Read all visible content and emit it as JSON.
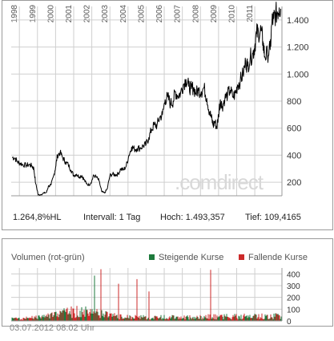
{
  "chart_data": [
    {
      "type": "line",
      "title": "",
      "xlabel": "",
      "ylabel": "",
      "x_tick_labels": [
        "1998",
        "1999",
        "2000",
        "2001",
        "2002",
        "2003",
        "2004",
        "2005",
        "2006",
        "2007",
        "2008",
        "2009",
        "2010",
        "2011"
      ],
      "y_tick_labels": [
        "200",
        "400",
        "600",
        "800",
        "1.000",
        "1.200",
        "1.400"
      ],
      "y_ticks": [
        200,
        400,
        600,
        800,
        1000,
        1200,
        1400
      ],
      "ylim": [
        100,
        1500
      ],
      "xlim": [
        1997.55,
        2012.5
      ],
      "grid": true,
      "watermark": ".comdirect",
      "series": [
        {
          "x": [
            1997.6,
            1997.75,
            1997.9,
            1998.05,
            1998.2,
            1998.4,
            1998.55,
            1998.7,
            1998.8,
            1998.9,
            1999.05,
            1999.2,
            1999.35,
            1999.5,
            1999.6,
            1999.75,
            1999.9,
            2000.0,
            2000.1,
            2000.25,
            2000.4,
            2000.55,
            2000.7,
            2000.85,
            2001.0,
            2001.15,
            2001.3,
            2001.45,
            2001.55,
            2001.7,
            2001.85,
            2002.0,
            2002.1,
            2002.25,
            2002.4,
            2002.55,
            2002.7,
            2002.85,
            2003.0,
            2003.15,
            2003.3,
            2003.45,
            2003.6,
            2003.75,
            2003.9,
            2004.05,
            2004.2,
            2004.35,
            2004.5,
            2004.7,
            2004.85,
            2005.0,
            2005.15,
            2005.3,
            2005.45,
            2005.6,
            2005.75,
            2005.9,
            2006.05,
            2006.2,
            2006.35,
            2006.5,
            2006.6,
            2006.75,
            2006.9,
            2007.05,
            2007.2,
            2007.35,
            2007.5,
            2007.6,
            2007.75,
            2007.9,
            2008.05,
            2008.2,
            2008.35,
            2008.5,
            2008.6,
            2008.7,
            2008.8,
            2008.9,
            2009.0,
            2009.1,
            2009.2,
            2009.35,
            2009.5,
            2009.65,
            2009.8,
            2009.95,
            2010.05,
            2010.2,
            2010.35,
            2010.5,
            2010.6,
            2010.75,
            2010.9,
            2011.0,
            2011.1,
            2011.2,
            2011.35,
            2011.45,
            2011.55,
            2011.7,
            2011.85,
            2011.95,
            2012.05,
            2012.15,
            2012.25,
            2012.35,
            2012.45
          ],
          "y": [
            385,
            380,
            350,
            340,
            330,
            325,
            330,
            320,
            300,
            190,
            105,
            110,
            120,
            125,
            170,
            180,
            250,
            310,
            400,
            420,
            380,
            350,
            330,
            290,
            250,
            260,
            240,
            250,
            225,
            190,
            180,
            210,
            250,
            240,
            210,
            130,
            120,
            150,
            250,
            260,
            255,
            260,
            300,
            290,
            320,
            400,
            460,
            445,
            450,
            455,
            470,
            480,
            530,
            590,
            625,
            620,
            680,
            700,
            810,
            830,
            780,
            800,
            870,
            840,
            860,
            920,
            960,
            910,
            890,
            900,
            860,
            880,
            870,
            900,
            820,
            720,
            680,
            620,
            650,
            600,
            700,
            810,
            760,
            820,
            850,
            880,
            830,
            860,
            920,
            950,
            1000,
            1090,
            1060,
            1120,
            1150,
            1210,
            1300,
            1310,
            1320,
            1240,
            1130,
            1150,
            1180,
            1390,
            1410,
            1440,
            1460,
            1490,
            1480
          ]
        }
      ]
    },
    {
      "type": "bar",
      "title": "",
      "ylim": [
        0,
        450
      ],
      "y_tick_labels": [
        "0",
        "100",
        "200",
        "300",
        "400"
      ],
      "y_ticks": [
        0,
        100,
        200,
        300,
        400
      ],
      "series": [
        {
          "name": "Steigende Kurse",
          "color": "#1e7a3c"
        },
        {
          "name": "Fallende Kurse",
          "color": "#cc2a2a"
        }
      ]
    }
  ],
  "stats": {
    "change": "1.264,8%HL",
    "interval": "Intervall: 1 Tag",
    "high": "Hoch: 1.493,357",
    "low": "Tief: 109,4165"
  },
  "volume_legend": {
    "title": "Volumen (rot-grün)",
    "rising_label": "Steigende Kurse",
    "falling_label": "Fallende Kurse",
    "rising_color": "#1e7a3c",
    "falling_color": "#cc2a2a"
  },
  "timestamp": "03.07.2012 08:02 Uhr",
  "colors": {
    "grid": "#cfcfcf",
    "line": "#000000",
    "frame": "#9a9a9a"
  }
}
